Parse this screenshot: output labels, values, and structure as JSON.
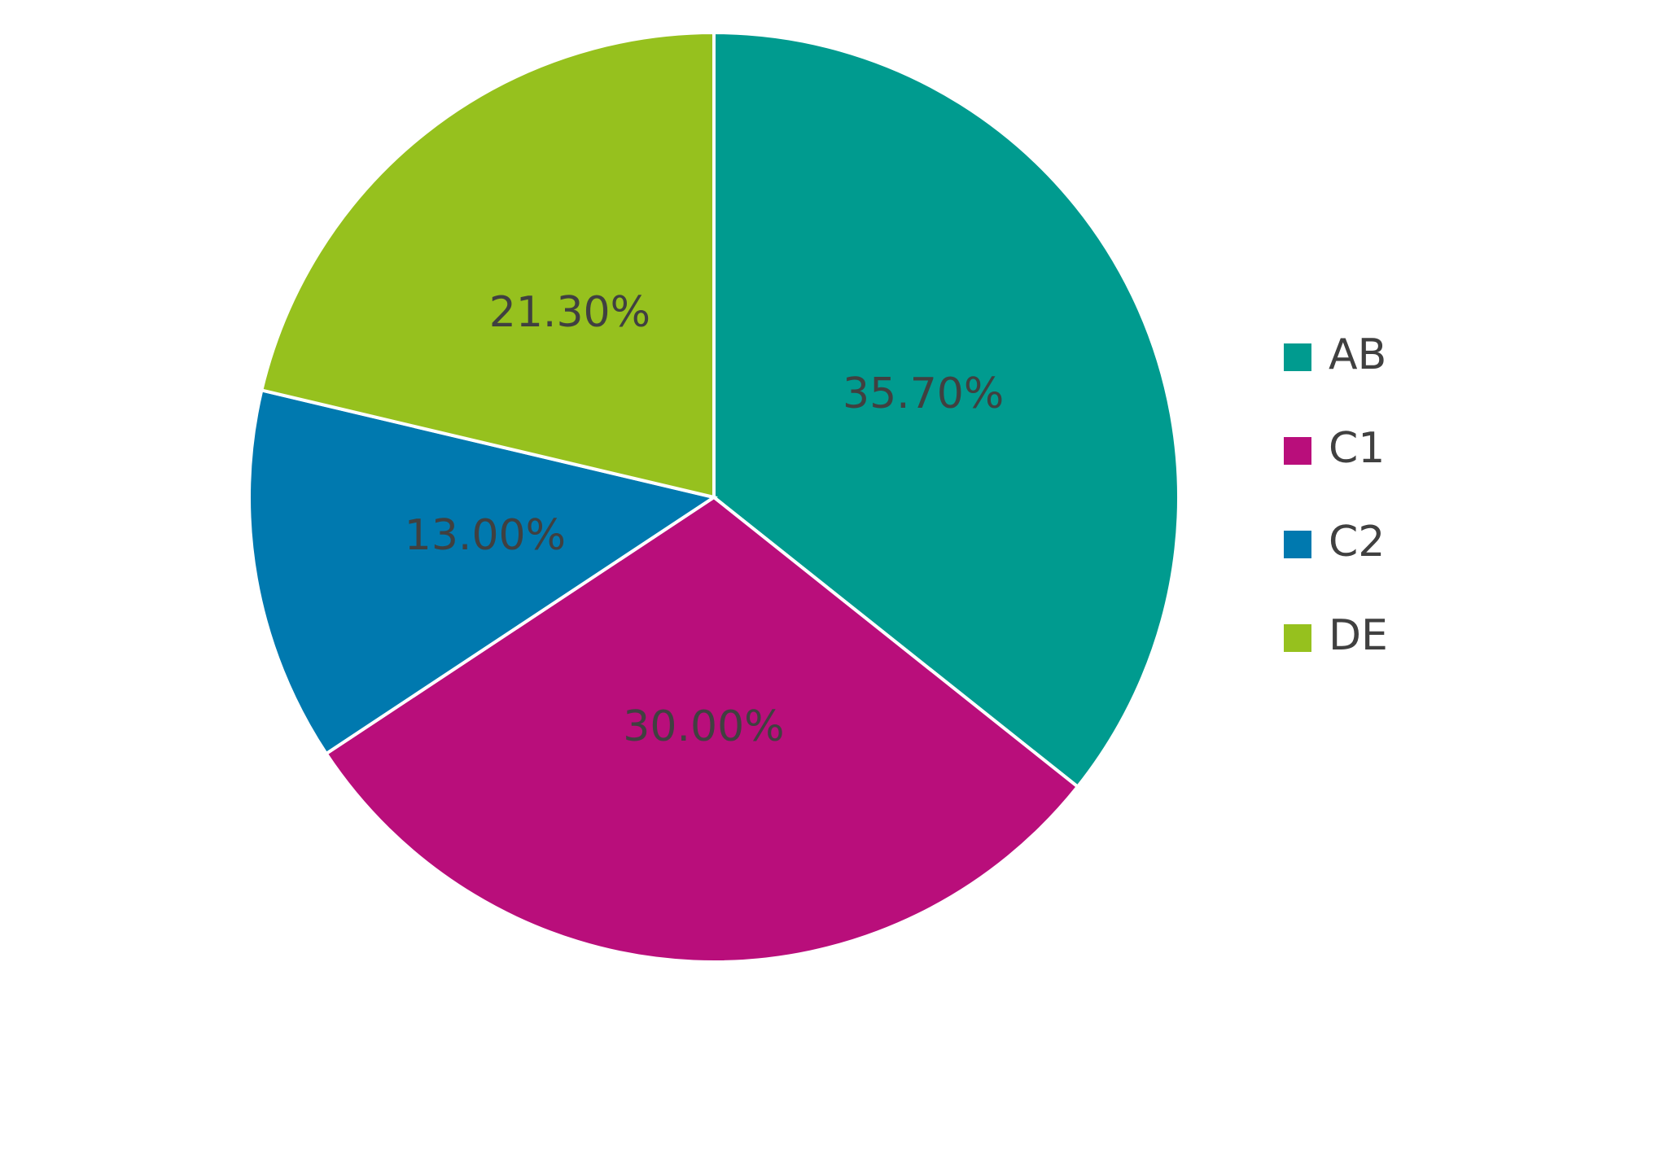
{
  "chart_data": {
    "type": "pie",
    "categories": [
      "AB",
      "C1",
      "C2",
      "DE"
    ],
    "values": [
      35.7,
      30,
      13,
      21.3
    ],
    "value_labels": [
      "35.70%",
      "30.00%",
      "13.00%",
      "21.30%"
    ],
    "colors": [
      "#009b8f",
      "#b90e7b",
      "#0079af",
      "#96c11e"
    ],
    "legend": "right"
  }
}
